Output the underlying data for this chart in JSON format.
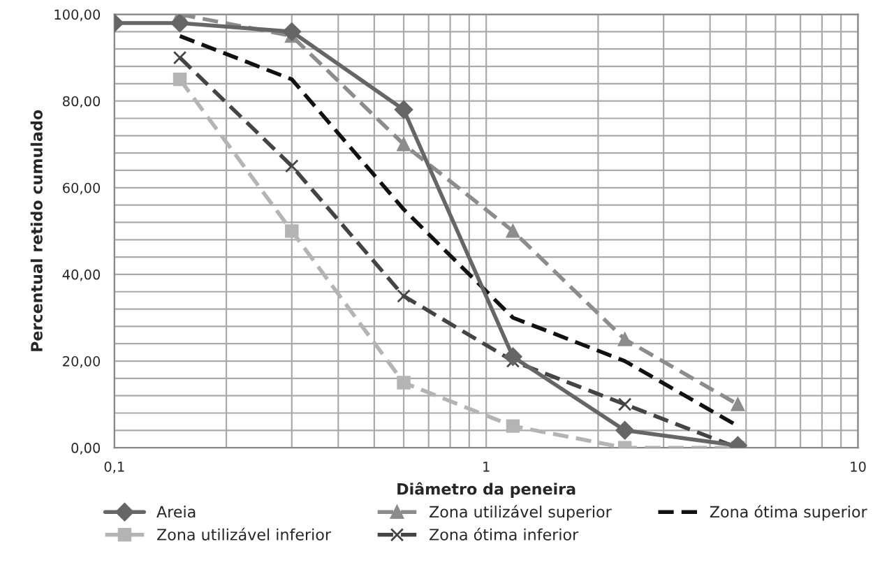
{
  "chart_data": {
    "type": "line",
    "xlabel": "Diâmetro da peneira",
    "ylabel": "Percentual retido cumulado",
    "log": "x",
    "xlim": [
      0.1,
      10
    ],
    "xticks": [
      {
        "value": 0.1,
        "label": "0,1"
      },
      1,
      10
    ],
    "ylim": [
      0,
      100
    ],
    "yticks": [
      {
        "value": 0,
        "label": "0,00"
      },
      {
        "value": 20,
        "label": "20,00"
      },
      {
        "value": 40,
        "label": "40,00"
      },
      {
        "value": 60,
        "label": "60,00"
      },
      {
        "value": 80,
        "label": "80,00"
      },
      {
        "value": 100,
        "label": "100,00"
      }
    ],
    "grid": true,
    "legend": "bottom",
    "series": [
      {
        "name": "Areia",
        "color": "#666666",
        "marker": "diamond",
        "line_style": "solid",
        "x": [
          0.1,
          0.15,
          0.3,
          0.6,
          1.18,
          2.36,
          4.75
        ],
        "values": [
          98,
          98,
          96,
          78,
          21,
          4,
          0.5
        ]
      },
      {
        "name": "Zona utilizável inferior",
        "color": "#b4b4b4",
        "marker": "square",
        "line_style": "dashed",
        "x": [
          0.15,
          0.3,
          0.6,
          1.18,
          2.36,
          4.75
        ],
        "values": [
          85,
          50,
          15,
          5,
          0,
          0
        ]
      },
      {
        "name": "Zona utilizável superior",
        "color": "#8c8c8c",
        "marker": "triangle",
        "line_style": "dashed",
        "x": [
          0.15,
          0.3,
          0.6,
          1.18,
          2.36,
          4.75
        ],
        "values": [
          100,
          95,
          70,
          50,
          25,
          10
        ]
      },
      {
        "name": "Zona ótima inferior",
        "color": "#444444",
        "marker": "cross",
        "line_style": "dashed",
        "x": [
          0.15,
          0.3,
          0.6,
          1.18,
          2.36,
          4.75
        ],
        "values": [
          90,
          65,
          35,
          20,
          10,
          0
        ]
      },
      {
        "name": "Zona ótima superior",
        "color": "#111111",
        "marker": "none",
        "line_style": "dashed",
        "x": [
          0.15,
          0.3,
          0.6,
          1.18,
          2.36,
          4.75
        ],
        "values": [
          95,
          85,
          55,
          30,
          20,
          5
        ]
      }
    ]
  }
}
